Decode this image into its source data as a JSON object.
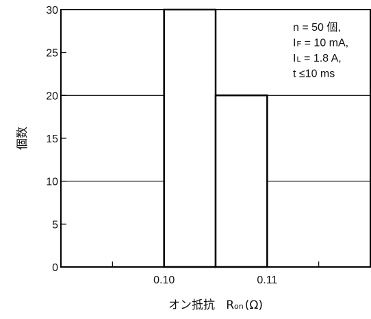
{
  "chart_data": {
    "type": "bar",
    "title": "",
    "xlabel": "オン抵抗",
    "xlabel_symbol": "R",
    "xlabel_symbol_sub": "on",
    "xlabel_unit": "(Ω)",
    "ylabel": "個数",
    "xlim": [
      0.09,
      0.12
    ],
    "ylim": [
      0,
      30
    ],
    "y_ticks": [
      "0",
      "5",
      "10",
      "15",
      "20",
      "25",
      "30"
    ],
    "x_tick_labels": [
      {
        "value": 0.1,
        "label": "0.10"
      },
      {
        "value": 0.11,
        "label": "0.11"
      }
    ],
    "x_minor_ticks": [
      0.095,
      0.1,
      0.105,
      0.11,
      0.115
    ],
    "grid_y": [
      10,
      20
    ],
    "bins": [
      {
        "x0": 0.1,
        "x1": 0.105,
        "count": 30
      },
      {
        "x0": 0.105,
        "x1": 0.11,
        "count": 20
      }
    ],
    "annotations": [
      {
        "main": "n = 50 個,"
      },
      {
        "main": "I",
        "sub": "F",
        "rest": " = 10 mA,"
      },
      {
        "main": "I",
        "sub": "L",
        "rest": " = 1.8 A,"
      },
      {
        "main": "t ≤10 ms"
      }
    ]
  }
}
